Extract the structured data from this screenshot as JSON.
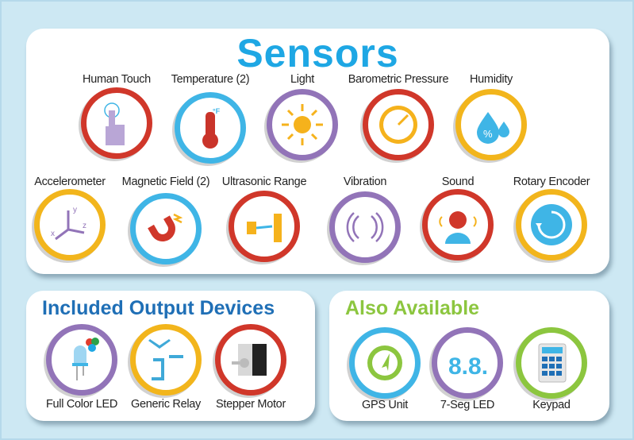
{
  "colors": {
    "background": "#cde8f3",
    "sensors_title": "#1ea7e4",
    "outputs_title": "#1f6fb6",
    "available_title": "#8cc63f",
    "red": "#d0372a",
    "blue": "#3fb5e6",
    "purple": "#9274b8",
    "yellow": "#f2b51c",
    "green": "#8cc63f"
  },
  "sensors": {
    "title": "Sensors",
    "items": [
      {
        "label": "Human Touch",
        "icon": "touch",
        "ring": "red"
      },
      {
        "label": "Temperature (2)",
        "icon": "thermometer",
        "ring": "blue",
        "glyph": "°F"
      },
      {
        "label": "Light",
        "icon": "sun",
        "ring": "purple"
      },
      {
        "label": "Barometric Pressure",
        "icon": "gauge",
        "ring": "red"
      },
      {
        "label": "Humidity",
        "icon": "droplets",
        "ring": "yellow",
        "glyph": "%"
      },
      {
        "label": "Accelerometer",
        "icon": "axes",
        "ring": "yellow",
        "glyph": "x y z"
      },
      {
        "label": "Magnetic Field (2)",
        "icon": "magnet",
        "ring": "blue"
      },
      {
        "label": "Ultrasonic Range",
        "icon": "ultrasonic",
        "ring": "red"
      },
      {
        "label": "Vibration",
        "icon": "vibration",
        "ring": "purple"
      },
      {
        "label": "Sound",
        "icon": "sound",
        "ring": "red"
      },
      {
        "label": "Rotary Encoder",
        "icon": "rotary",
        "ring": "yellow"
      }
    ]
  },
  "outputs": {
    "title": "Included Output Devices",
    "items": [
      {
        "label": "Full Color LED",
        "icon": "led",
        "ring": "purple"
      },
      {
        "label": "Generic Relay",
        "icon": "relay",
        "ring": "yellow"
      },
      {
        "label": "Stepper Motor",
        "icon": "motor",
        "ring": "red"
      }
    ]
  },
  "available": {
    "title": "Also Available",
    "items": [
      {
        "label": "GPS Unit",
        "icon": "gps",
        "ring": "blue"
      },
      {
        "label": "7-Seg LED",
        "icon": "seven-seg",
        "ring": "purple",
        "glyph": "8.8."
      },
      {
        "label": "Keypad",
        "icon": "keypad",
        "ring": "green"
      }
    ]
  }
}
